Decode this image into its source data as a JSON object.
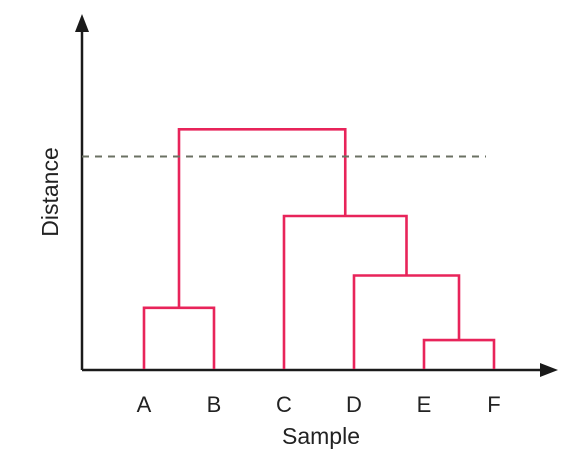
{
  "diagram": {
    "type": "dendrogram",
    "x_axis_label": "Sample",
    "y_axis_label": "Distance",
    "samples": [
      "A",
      "B",
      "C",
      "D",
      "E",
      "F"
    ],
    "merges": [
      {
        "id": "m1",
        "left": "E",
        "right": "F",
        "height": 0.17
      },
      {
        "id": "m2",
        "left": "A",
        "right": "B",
        "height": 0.36
      },
      {
        "id": "m3",
        "left": "D",
        "right": "m1",
        "height": 0.55
      },
      {
        "id": "m4",
        "left": "C",
        "right": "m3",
        "height": 0.9
      },
      {
        "id": "m5",
        "left": "m2",
        "right": "m4",
        "height": 1.41
      }
    ],
    "cut_height": 1.25,
    "colors": {
      "links": "#e8245a",
      "cut_line": "#6b7163",
      "axes": "#1a1a1a"
    }
  }
}
